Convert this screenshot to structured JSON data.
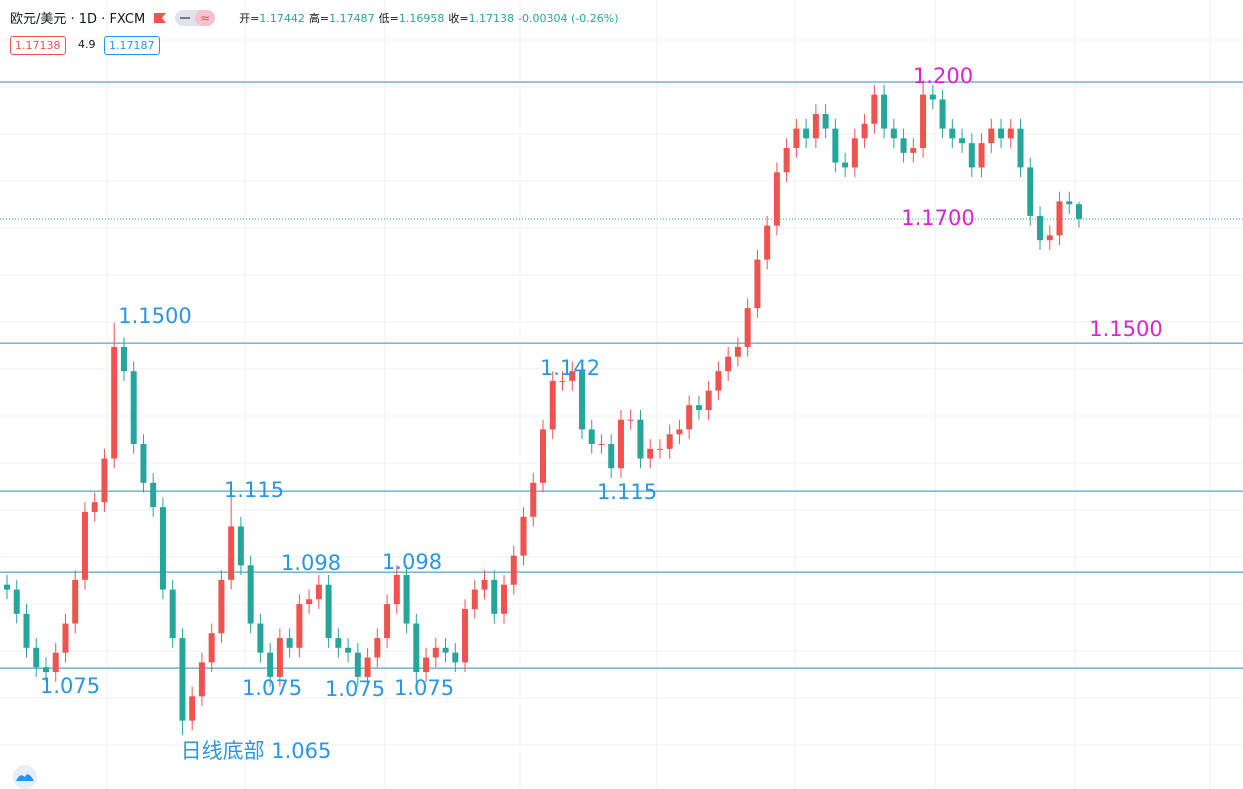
{
  "chart_data": {
    "type": "candlestick",
    "header": {
      "symbol": "欧元/美元 · 1D · FXCM",
      "ohlc": [
        {
          "label": "开=",
          "value": "1.17442"
        },
        {
          "label": "高=",
          "value": "1.17487"
        },
        {
          "label": "低=",
          "value": "1.16958"
        },
        {
          "label": "收=",
          "value": "1.17138"
        }
      ],
      "change": "-0.00304 (-0.26%)",
      "bid": "1.17138",
      "spread": "4.9",
      "ask": "1.17187"
    },
    "up_color": "#ef5350",
    "down_color": "#26a69a",
    "ylim": [
      1.0539,
      1.2165
    ],
    "open": [
      1.096,
      1.095,
      1.09,
      1.083,
      1.079,
      1.078,
      1.082,
      1.088,
      1.097,
      1.111,
      1.113,
      1.122,
      1.145,
      1.14,
      1.125,
      1.117,
      1.112,
      1.095,
      1.085,
      1.068,
      1.073,
      1.08,
      1.086,
      1.097,
      1.108,
      1.1,
      1.088,
      1.082,
      1.077,
      1.085,
      1.083,
      1.092,
      1.093,
      1.096,
      1.085,
      1.083,
      1.082,
      1.077,
      1.081,
      1.085,
      1.092,
      1.098,
      1.088,
      1.078,
      1.081,
      1.083,
      1.082,
      1.08,
      1.091,
      1.095,
      1.097,
      1.09,
      1.096,
      1.102,
      1.11,
      1.117,
      1.128,
      1.138,
      1.138,
      1.14,
      1.128,
      1.125,
      1.125,
      1.12,
      1.13,
      1.13,
      1.122,
      1.124,
      1.124,
      1.127,
      1.128,
      1.133,
      1.132,
      1.136,
      1.14,
      1.143,
      1.145,
      1.153,
      1.163,
      1.17,
      1.181,
      1.186,
      1.19,
      1.188,
      1.193,
      1.19,
      1.183,
      1.182,
      1.188,
      1.191,
      1.197,
      1.19,
      1.188,
      1.185,
      1.186,
      1.197,
      1.196,
      1.19,
      1.188,
      1.187,
      1.182,
      1.187,
      1.19,
      1.188,
      1.19,
      1.182,
      1.172,
      1.167,
      1.168,
      1.175,
      1.17442
    ],
    "high": [
      1.098,
      1.097,
      1.092,
      1.085,
      1.081,
      1.084,
      1.09,
      1.099,
      1.113,
      1.115,
      1.124,
      1.15,
      1.147,
      1.142,
      1.127,
      1.119,
      1.114,
      1.097,
      1.087,
      1.075,
      1.082,
      1.088,
      1.099,
      1.115,
      1.11,
      1.102,
      1.09,
      1.084,
      1.087,
      1.087,
      1.094,
      1.095,
      1.098,
      1.098,
      1.087,
      1.085,
      1.084,
      1.083,
      1.087,
      1.094,
      1.1,
      1.1,
      1.09,
      1.083,
      1.085,
      1.085,
      1.084,
      1.093,
      1.097,
      1.099,
      1.099,
      1.098,
      1.104,
      1.112,
      1.119,
      1.13,
      1.14,
      1.14,
      1.142,
      1.142,
      1.13,
      1.127,
      1.127,
      1.132,
      1.132,
      1.132,
      1.126,
      1.126,
      1.129,
      1.13,
      1.135,
      1.135,
      1.138,
      1.142,
      1.145,
      1.147,
      1.155,
      1.165,
      1.172,
      1.183,
      1.188,
      1.192,
      1.192,
      1.195,
      1.195,
      1.192,
      1.185,
      1.19,
      1.193,
      1.199,
      1.199,
      1.192,
      1.19,
      1.188,
      1.2,
      1.199,
      1.198,
      1.192,
      1.19,
      1.189,
      1.189,
      1.192,
      1.192,
      1.192,
      1.192,
      1.184,
      1.174,
      1.17,
      1.177,
      1.177,
      1.17487
    ],
    "low": [
      1.093,
      1.088,
      1.081,
      1.077,
      1.076,
      1.076,
      1.08,
      1.086,
      1.095,
      1.109,
      1.111,
      1.12,
      1.138,
      1.123,
      1.115,
      1.11,
      1.093,
      1.083,
      1.065,
      1.066,
      1.071,
      1.078,
      1.084,
      1.095,
      1.098,
      1.086,
      1.08,
      1.075,
      1.075,
      1.081,
      1.081,
      1.09,
      1.091,
      1.083,
      1.081,
      1.08,
      1.075,
      1.075,
      1.079,
      1.083,
      1.09,
      1.086,
      1.076,
      1.076,
      1.079,
      1.08,
      1.078,
      1.078,
      1.089,
      1.093,
      1.088,
      1.088,
      1.094,
      1.1,
      1.108,
      1.115,
      1.126,
      1.136,
      1.136,
      1.126,
      1.123,
      1.123,
      1.118,
      1.118,
      1.128,
      1.12,
      1.12,
      1.122,
      1.122,
      1.125,
      1.126,
      1.13,
      1.13,
      1.134,
      1.138,
      1.141,
      1.143,
      1.151,
      1.161,
      1.168,
      1.179,
      1.184,
      1.186,
      1.186,
      1.188,
      1.181,
      1.18,
      1.18,
      1.186,
      1.189,
      1.188,
      1.186,
      1.183,
      1.183,
      1.184,
      1.194,
      1.188,
      1.186,
      1.185,
      1.18,
      1.18,
      1.185,
      1.186,
      1.186,
      1.18,
      1.17,
      1.165,
      1.165,
      1.166,
      1.1724,
      1.16958
    ],
    "close": [
      1.095,
      1.09,
      1.083,
      1.079,
      1.078,
      1.082,
      1.088,
      1.097,
      1.111,
      1.113,
      1.122,
      1.145,
      1.14,
      1.125,
      1.117,
      1.112,
      1.095,
      1.085,
      1.068,
      1.073,
      1.08,
      1.086,
      1.097,
      1.108,
      1.1,
      1.088,
      1.082,
      1.077,
      1.085,
      1.083,
      1.092,
      1.093,
      1.096,
      1.085,
      1.083,
      1.082,
      1.077,
      1.081,
      1.085,
      1.092,
      1.098,
      1.088,
      1.078,
      1.081,
      1.083,
      1.082,
      1.08,
      1.091,
      1.095,
      1.097,
      1.09,
      1.096,
      1.102,
      1.11,
      1.117,
      1.128,
      1.138,
      1.138,
      1.14,
      1.128,
      1.125,
      1.125,
      1.12,
      1.13,
      1.13,
      1.122,
      1.124,
      1.124,
      1.127,
      1.128,
      1.133,
      1.132,
      1.136,
      1.14,
      1.143,
      1.145,
      1.153,
      1.163,
      1.17,
      1.181,
      1.186,
      1.19,
      1.188,
      1.193,
      1.19,
      1.183,
      1.182,
      1.188,
      1.191,
      1.197,
      1.19,
      1.188,
      1.185,
      1.186,
      1.197,
      1.196,
      1.19,
      1.188,
      1.187,
      1.182,
      1.187,
      1.19,
      1.188,
      1.19,
      1.182,
      1.172,
      1.167,
      1.168,
      1.175,
      1.1744,
      1.17138
    ],
    "hlines": [
      1.1996,
      1.1458,
      1.1153,
      1.0986,
      1.0788
    ],
    "hline_color": "#2a8fb8",
    "annotations": [
      {
        "text": "1.200",
        "color": "#e020d8"
      },
      {
        "text": "1.1700",
        "color": "#e020d8"
      },
      {
        "text": "1.1500",
        "color": "#e020d8"
      },
      {
        "text": "1.1500",
        "color": "#2a96e6"
      },
      {
        "text": "1.142",
        "color": "#2a96e6"
      },
      {
        "text": "1.115",
        "color": "#2a96e6"
      },
      {
        "text": "1.115",
        "color": "#2a96e6"
      },
      {
        "text": "1.098",
        "color": "#2a96e6"
      },
      {
        "text": "1.098",
        "color": "#2a96e6"
      },
      {
        "text": "1.075",
        "color": "#2a96e6"
      },
      {
        "text": "1.075",
        "color": "#2a96e6"
      },
      {
        "text": "1.075",
        "color": "#2a96e6"
      },
      {
        "text": "1.075",
        "color": "#2a96e6"
      },
      {
        "text": "日线底部 1.065",
        "color": "#2a96e6"
      }
    ]
  }
}
